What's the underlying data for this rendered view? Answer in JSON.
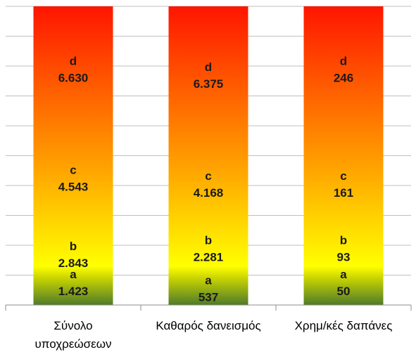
{
  "chart_data": {
    "type": "bar",
    "stacked": true,
    "categories": [
      [
        "Σύνολο",
        "υποχρεώσεων"
      ],
      [
        "Καθαρός δανεισμός"
      ],
      [
        "Χρημ/κές δαπάνες"
      ]
    ],
    "series_labels": [
      "a",
      "b",
      "c",
      "d"
    ],
    "value_labels": [
      [
        "1.423",
        "2.843",
        "4.543",
        "6.630"
      ],
      [
        "537",
        "2.281",
        "4.168",
        "6.375"
      ],
      [
        "50",
        "93",
        "161",
        "246"
      ]
    ],
    "label_positions": [
      [
        0.075,
        0.17,
        0.425,
        0.79
      ],
      [
        0.055,
        0.19,
        0.405,
        0.77
      ],
      [
        0.075,
        0.19,
        0.405,
        0.79
      ]
    ],
    "ylim": [
      0,
      1
    ],
    "grid": true,
    "gradient_colors": [
      "#5a8a2e",
      "#ffff00",
      "#ffa500",
      "#ff0000"
    ]
  }
}
